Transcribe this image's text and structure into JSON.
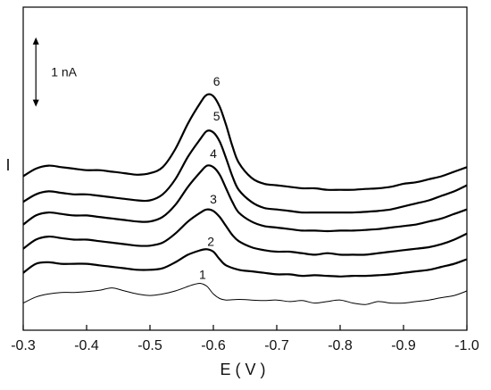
{
  "chart_data": {
    "type": "line",
    "xlabel": "E ( V )",
    "ylabel": "I",
    "x_reversed": true,
    "xlim": [
      -0.3,
      -1.0
    ],
    "x_ticks": [
      -0.3,
      -0.4,
      -0.5,
      -0.6,
      -0.7,
      -0.8,
      -0.9,
      -1.0
    ],
    "x_tick_labels": [
      "-0.3",
      "-0.4",
      "-0.5",
      "-0.6",
      "-0.7",
      "-0.8",
      "-0.9",
      "-1.0"
    ],
    "y_tick_labels": [],
    "y_units": "nA",
    "ylim": [
      -0.9,
      9.8
    ],
    "scale_bar": {
      "label": "1 nA",
      "value": 1.0,
      "x": -0.32,
      "y_top": 8.8
    },
    "grid": false,
    "legend": "none",
    "series": [
      {
        "name": "1",
        "line": "thin",
        "label_at": [
          -0.583,
          0.8
        ],
        "x": [
          -0.3,
          -0.32,
          -0.34,
          -0.36,
          -0.38,
          -0.4,
          -0.42,
          -0.44,
          -0.46,
          -0.48,
          -0.5,
          -0.52,
          -0.54,
          -0.56,
          -0.57,
          -0.58,
          -0.59,
          -0.6,
          -0.61,
          -0.62,
          -0.64,
          -0.66,
          -0.68,
          -0.7,
          -0.72,
          -0.74,
          -0.76,
          -0.78,
          -0.8,
          -0.82,
          -0.84,
          -0.86,
          -0.88,
          -0.9,
          -0.92,
          -0.94,
          -0.96,
          -0.98,
          -1.0
        ],
        "y": [
          0.0,
          0.2,
          0.3,
          0.35,
          0.35,
          0.38,
          0.42,
          0.5,
          0.4,
          0.3,
          0.25,
          0.3,
          0.4,
          0.55,
          0.62,
          0.65,
          0.55,
          0.3,
          0.15,
          0.1,
          0.12,
          0.1,
          0.08,
          0.1,
          0.05,
          0.08,
          0.0,
          0.05,
          0.1,
          0.0,
          -0.05,
          0.05,
          0.0,
          0.0,
          0.05,
          0.1,
          0.18,
          0.25,
          0.4
        ]
      },
      {
        "name": "2",
        "line": "thick",
        "label_at": [
          -0.596,
          1.9
        ],
        "x": [
          -0.3,
          -0.32,
          -0.34,
          -0.36,
          -0.38,
          -0.4,
          -0.42,
          -0.44,
          -0.46,
          -0.48,
          -0.5,
          -0.52,
          -0.54,
          -0.56,
          -0.58,
          -0.59,
          -0.6,
          -0.61,
          -0.62,
          -0.64,
          -0.66,
          -0.68,
          -0.7,
          -0.72,
          -0.74,
          -0.76,
          -0.78,
          -0.8,
          -0.82,
          -0.84,
          -0.86,
          -0.88,
          -0.9,
          -0.92,
          -0.94,
          -0.96,
          -0.98,
          -1.0
        ],
        "y": [
          1.0,
          1.3,
          1.35,
          1.3,
          1.3,
          1.3,
          1.25,
          1.2,
          1.15,
          1.1,
          1.1,
          1.15,
          1.35,
          1.6,
          1.75,
          1.78,
          1.7,
          1.45,
          1.25,
          1.1,
          1.05,
          1.0,
          0.95,
          0.95,
          0.9,
          0.92,
          0.9,
          0.88,
          0.9,
          0.9,
          0.92,
          0.95,
          1.0,
          1.05,
          1.1,
          1.2,
          1.3,
          1.45
        ]
      },
      {
        "name": "3",
        "line": "thick",
        "label_at": [
          -0.6,
          3.3
        ],
        "x": [
          -0.3,
          -0.32,
          -0.34,
          -0.36,
          -0.38,
          -0.4,
          -0.42,
          -0.44,
          -0.46,
          -0.48,
          -0.5,
          -0.52,
          -0.54,
          -0.56,
          -0.58,
          -0.59,
          -0.6,
          -0.61,
          -0.62,
          -0.63,
          -0.64,
          -0.66,
          -0.68,
          -0.7,
          -0.72,
          -0.74,
          -0.76,
          -0.78,
          -0.8,
          -0.82,
          -0.84,
          -0.86,
          -0.88,
          -0.9,
          -0.92,
          -0.94,
          -0.96,
          -0.98,
          -1.0
        ],
        "y": [
          1.8,
          2.1,
          2.2,
          2.15,
          2.1,
          2.1,
          2.05,
          2.0,
          1.95,
          1.9,
          1.9,
          2.0,
          2.3,
          2.7,
          3.0,
          3.1,
          3.05,
          2.85,
          2.55,
          2.25,
          2.05,
          1.85,
          1.75,
          1.7,
          1.7,
          1.65,
          1.6,
          1.65,
          1.6,
          1.6,
          1.6,
          1.65,
          1.7,
          1.75,
          1.8,
          1.85,
          1.95,
          2.1,
          2.3
        ]
      },
      {
        "name": "4",
        "line": "thick",
        "label_at": [
          -0.6,
          4.8
        ],
        "x": [
          -0.3,
          -0.32,
          -0.34,
          -0.36,
          -0.38,
          -0.4,
          -0.42,
          -0.44,
          -0.46,
          -0.48,
          -0.5,
          -0.52,
          -0.54,
          -0.56,
          -0.58,
          -0.59,
          -0.6,
          -0.61,
          -0.62,
          -0.63,
          -0.64,
          -0.66,
          -0.68,
          -0.7,
          -0.72,
          -0.74,
          -0.76,
          -0.78,
          -0.8,
          -0.82,
          -0.84,
          -0.86,
          -0.88,
          -0.9,
          -0.92,
          -0.94,
          -0.96,
          -0.98,
          -1.0
        ],
        "y": [
          2.6,
          2.9,
          3.0,
          2.95,
          2.9,
          2.9,
          2.85,
          2.8,
          2.75,
          2.7,
          2.7,
          2.85,
          3.25,
          3.85,
          4.35,
          4.55,
          4.5,
          4.25,
          3.8,
          3.35,
          3.0,
          2.7,
          2.55,
          2.5,
          2.45,
          2.4,
          2.4,
          2.38,
          2.4,
          2.4,
          2.42,
          2.45,
          2.5,
          2.55,
          2.6,
          2.7,
          2.8,
          2.95,
          3.1
        ]
      },
      {
        "name": "5",
        "line": "thick",
        "label_at": [
          -0.605,
          6.05
        ],
        "x": [
          -0.3,
          -0.32,
          -0.34,
          -0.36,
          -0.38,
          -0.4,
          -0.42,
          -0.44,
          -0.46,
          -0.48,
          -0.5,
          -0.52,
          -0.54,
          -0.56,
          -0.58,
          -0.59,
          -0.6,
          -0.61,
          -0.62,
          -0.63,
          -0.64,
          -0.66,
          -0.68,
          -0.7,
          -0.72,
          -0.74,
          -0.76,
          -0.78,
          -0.8,
          -0.82,
          -0.84,
          -0.86,
          -0.88,
          -0.9,
          -0.92,
          -0.94,
          -0.96,
          -0.98,
          -1.0
        ],
        "y": [
          3.35,
          3.6,
          3.7,
          3.65,
          3.6,
          3.6,
          3.55,
          3.5,
          3.45,
          3.4,
          3.4,
          3.6,
          4.1,
          4.85,
          5.45,
          5.7,
          5.65,
          5.35,
          4.8,
          4.2,
          3.75,
          3.35,
          3.15,
          3.1,
          3.05,
          3.0,
          3.0,
          3.0,
          3.0,
          3.0,
          3.02,
          3.05,
          3.1,
          3.2,
          3.3,
          3.4,
          3.55,
          3.7,
          3.9
        ]
      },
      {
        "name": "6",
        "line": "thick",
        "label_at": [
          -0.605,
          7.2
        ],
        "x": [
          -0.3,
          -0.32,
          -0.34,
          -0.36,
          -0.38,
          -0.4,
          -0.42,
          -0.44,
          -0.46,
          -0.48,
          -0.5,
          -0.52,
          -0.54,
          -0.56,
          -0.58,
          -0.59,
          -0.6,
          -0.61,
          -0.62,
          -0.63,
          -0.64,
          -0.66,
          -0.68,
          -0.7,
          -0.72,
          -0.74,
          -0.76,
          -0.78,
          -0.8,
          -0.82,
          -0.84,
          -0.86,
          -0.88,
          -0.9,
          -0.92,
          -0.94,
          -0.96,
          -0.98,
          -1.0
        ],
        "y": [
          4.2,
          4.45,
          4.55,
          4.5,
          4.45,
          4.4,
          4.4,
          4.35,
          4.3,
          4.25,
          4.3,
          4.5,
          5.1,
          5.95,
          6.65,
          6.9,
          6.85,
          6.5,
          5.9,
          5.2,
          4.65,
          4.15,
          3.95,
          3.9,
          3.85,
          3.8,
          3.8,
          3.75,
          3.75,
          3.75,
          3.78,
          3.8,
          3.85,
          3.95,
          4.0,
          4.1,
          4.2,
          4.35,
          4.5
        ]
      }
    ]
  }
}
